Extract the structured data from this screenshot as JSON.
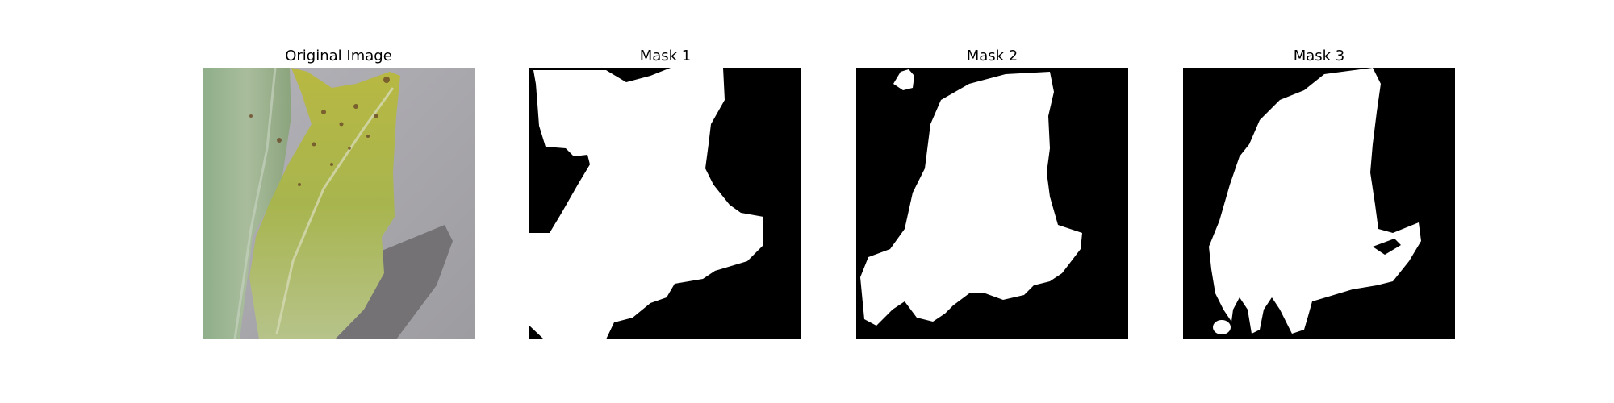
{
  "panels": [
    {
      "title": "Original Image",
      "kind": "photo"
    },
    {
      "title": "Mask 1",
      "kind": "binary-mask"
    },
    {
      "title": "Mask 2",
      "kind": "binary-mask"
    },
    {
      "title": "Mask 3",
      "kind": "binary-mask"
    }
  ],
  "colors": {
    "mask_background": "#000000",
    "mask_foreground": "#ffffff",
    "leaf_green": "#b9c14f",
    "leaf_pale": "#9fb596",
    "surface_gray": "#a8a7ad",
    "shadow_gray": "#6d6a6d",
    "leaf_spot": "#6b4a28"
  }
}
